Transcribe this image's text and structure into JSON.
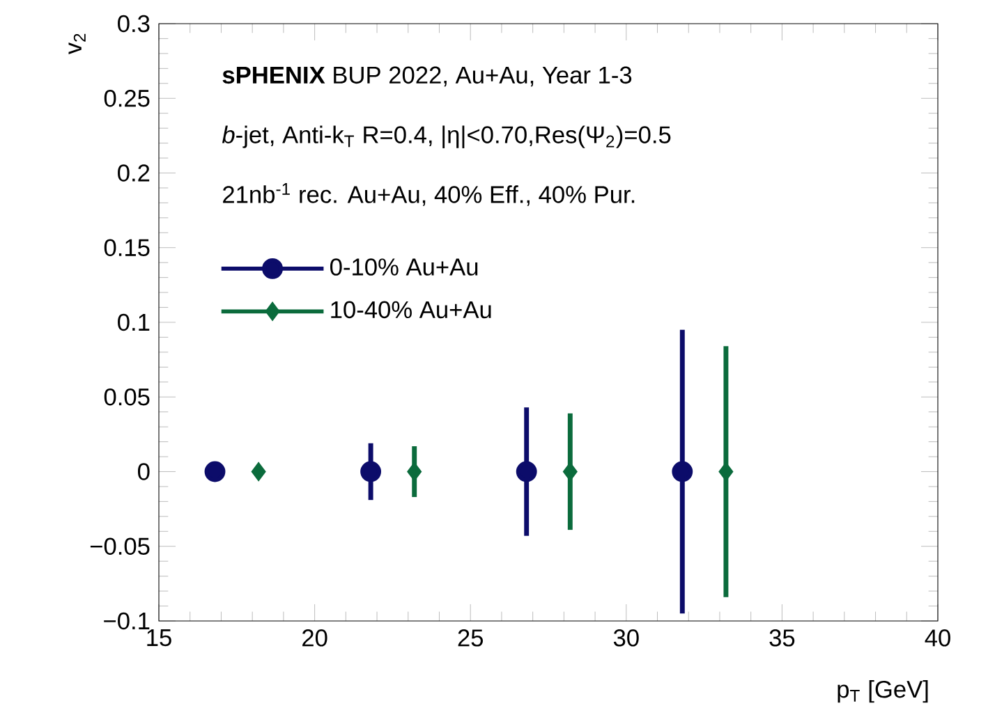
{
  "chart_data": {
    "type": "scatter",
    "xlabel": "p$_{T}$ [GeV]",
    "ylabel": "v$_{2}$",
    "annotations": [
      "**sPHENIX** BUP 2022, Au+Au, Year 1-3",
      "*b*-jet, Anti-k$_{T}$ R=0.4, |η|<0.70,Res(Ψ$_{2}$)=0.5",
      "21nb$^{-1}$ rec. Au+Au, 40% Eff., 40% Pur."
    ],
    "series": [
      {
        "name": "0-10% Au+Au",
        "color": "#0c0c6a",
        "marker": "circle",
        "x": [
          16.8,
          21.8,
          26.8,
          31.8
        ],
        "values": [
          0,
          0,
          0,
          0
        ],
        "errors": [
          null,
          0.019,
          0.043,
          0.095
        ]
      },
      {
        "name": "10-40% Au+Au",
        "color": "#0b6b3c",
        "marker": "diamond",
        "x": [
          18.2,
          23.2,
          28.2,
          33.2
        ],
        "values": [
          0,
          0,
          0,
          0
        ],
        "errors": [
          null,
          0.017,
          0.039,
          0.084
        ]
      }
    ],
    "xlim": [
      15,
      40
    ],
    "ylim": [
      -0.1,
      0.3
    ],
    "xticks": [
      15,
      20,
      25,
      30,
      35,
      40
    ],
    "yticks": [
      {
        "value": -0.1,
        "label": "−0.1"
      },
      {
        "value": -0.05,
        "label": "−0.05"
      },
      0,
      0.05,
      0.1,
      0.15,
      0.2,
      0.25,
      0.3
    ],
    "grid": false,
    "legend": "top left"
  }
}
